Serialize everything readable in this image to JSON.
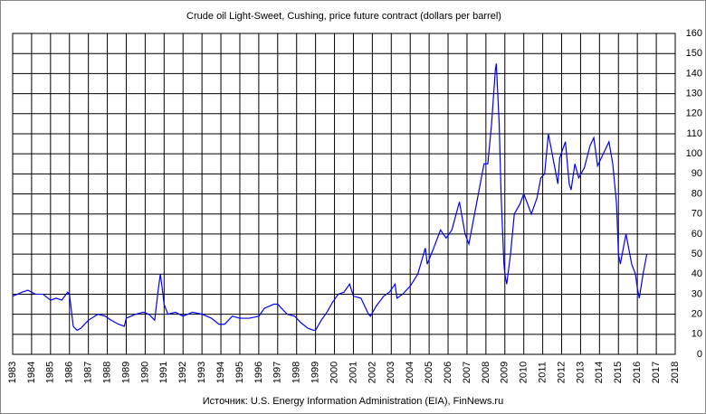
{
  "chart_data": {
    "type": "line",
    "title": "Crude  oil Light-Sweet,  Cushing, price future contract (dollars per barrel)",
    "source": "Источник:  U.S. Energy Information  Administration (EIA), FinNews.ru",
    "xlim": [
      1983,
      2018
    ],
    "xticks": [
      1983,
      1984,
      1985,
      1986,
      1987,
      1988,
      1989,
      1990,
      1991,
      1992,
      1993,
      1994,
      1995,
      1996,
      1997,
      1998,
      1999,
      2000,
      2001,
      2002,
      2003,
      2004,
      2005,
      2006,
      2007,
      2008,
      2009,
      2010,
      2011,
      2012,
      2013,
      2014,
      2015,
      2016,
      2017,
      2018
    ],
    "ylim": [
      0,
      160
    ],
    "yticks": [
      0,
      10,
      20,
      30,
      40,
      50,
      60,
      70,
      80,
      90,
      100,
      110,
      120,
      130,
      140,
      150,
      160
    ],
    "grid": true,
    "series": [
      {
        "color": "#0000ff",
        "x": [
          1983.0,
          1983.5,
          1983.8,
          1984.2,
          1984.6,
          1985.0,
          1985.3,
          1985.6,
          1985.9,
          1986.0,
          1986.2,
          1986.4,
          1986.6,
          1986.8,
          1987.0,
          1987.5,
          1987.9,
          1988.2,
          1988.6,
          1988.9,
          1989.0,
          1989.5,
          1989.9,
          1990.2,
          1990.5,
          1990.7,
          1990.8,
          1990.9,
          1991.0,
          1991.2,
          1991.6,
          1992.0,
          1992.5,
          1993.0,
          1993.5,
          1993.9,
          1994.2,
          1994.6,
          1995.0,
          1995.5,
          1996.0,
          1996.3,
          1996.8,
          1997.0,
          1997.5,
          1997.9,
          1998.2,
          1998.6,
          1998.9,
          1999.0,
          1999.3,
          1999.6,
          1999.9,
          2000.2,
          2000.5,
          2000.8,
          2001.0,
          2001.4,
          2001.8,
          2001.9,
          2002.2,
          2002.6,
          2002.9,
          2003.2,
          2003.3,
          2003.6,
          2004.0,
          2004.4,
          2004.8,
          2004.9,
          2005.2,
          2005.6,
          2005.9,
          2006.2,
          2006.6,
          2006.9,
          2007.1,
          2007.5,
          2007.8,
          2007.9,
          2008.1,
          2008.3,
          2008.5,
          2008.55,
          2008.7,
          2008.8,
          2008.95,
          2009.0,
          2009.1,
          2009.3,
          2009.5,
          2009.8,
          2010.0,
          2010.4,
          2010.7,
          2010.9,
          2011.1,
          2011.3,
          2011.6,
          2011.8,
          2011.9,
          2012.2,
          2012.4,
          2012.5,
          2012.7,
          2012.9,
          2013.2,
          2013.5,
          2013.7,
          2013.9,
          2014.2,
          2014.5,
          2014.7,
          2014.9,
          2015.0,
          2015.1,
          2015.4,
          2015.6,
          2015.7,
          2015.9,
          2016.0,
          2016.1,
          2016.3,
          2016.5
        ],
        "values": [
          29,
          31,
          32,
          30,
          30,
          27,
          28,
          27,
          31,
          30,
          14,
          12,
          13,
          15,
          17,
          20,
          19,
          17,
          15,
          14,
          18,
          20,
          21,
          20,
          17,
          33,
          40,
          33,
          25,
          20,
          21,
          19,
          21,
          20,
          18,
          15,
          15,
          19,
          18,
          18,
          19,
          23,
          25,
          25,
          20,
          19,
          16,
          13,
          12,
          12,
          17,
          21,
          26,
          30,
          31,
          35,
          29,
          28,
          20,
          19,
          24,
          29,
          31,
          35,
          28,
          30,
          34,
          40,
          53,
          45,
          52,
          62,
          58,
          62,
          76,
          60,
          55,
          75,
          90,
          95,
          95,
          115,
          142,
          145,
          115,
          80,
          45,
          40,
          35,
          50,
          70,
          75,
          80,
          70,
          78,
          88,
          90,
          110,
          95,
          85,
          98,
          106,
          85,
          82,
          95,
          88,
          93,
          104,
          108,
          94,
          100,
          106,
          95,
          75,
          50,
          45,
          60,
          50,
          45,
          40,
          33,
          28,
          40,
          50
        ]
      }
    ]
  }
}
